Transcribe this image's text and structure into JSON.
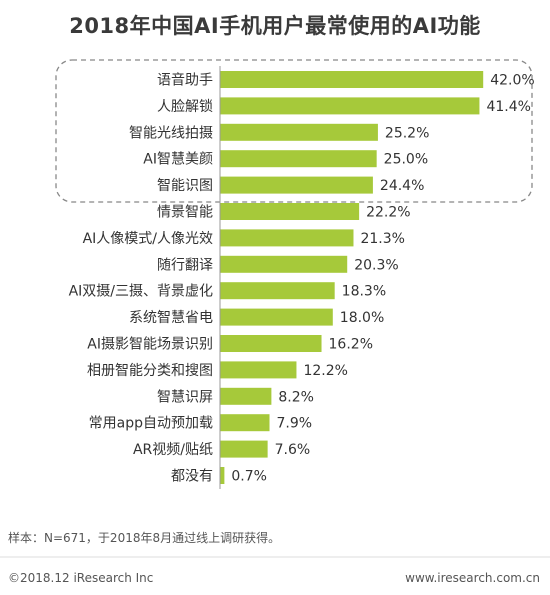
{
  "title": "2018年中国AI手机用户最常使用的AI功能",
  "note": "样本：N=671，于2018年8月通过线上调研获得。",
  "footer": {
    "copyright": "©2018.12 iResearch Inc",
    "website": "www.iresearch.com.cn"
  },
  "colors": {
    "bar": "#a6c93a",
    "highlight_border": "#888888",
    "axis": "#999999"
  },
  "chart_data": {
    "type": "bar",
    "orientation": "horizontal",
    "title": "2018年中国AI手机用户最常使用的AI功能",
    "categories": [
      "语音助手",
      "人脸解锁",
      "智能光线拍摄",
      "AI智慧美颜",
      "智能识图",
      "情景智能",
      "AI人像模式/人像光效",
      "随行翻译",
      "AI双摄/三摄、背景虚化",
      "系统智慧省电",
      "AI摄影智能场景识别",
      "相册智能分类和搜图",
      "智慧识屏",
      "常用app自动预加载",
      "AR视频/贴纸",
      "都没有"
    ],
    "values": [
      42.0,
      41.4,
      25.2,
      25.0,
      24.4,
      22.2,
      21.3,
      20.3,
      18.3,
      18.0,
      16.2,
      12.2,
      8.2,
      7.9,
      7.6,
      0.7
    ],
    "value_labels": [
      "42.0%",
      "41.4%",
      "25.2%",
      "25.0%",
      "24.4%",
      "22.2%",
      "21.3%",
      "20.3%",
      "18.3%",
      "18.0%",
      "16.2%",
      "12.2%",
      "8.2%",
      "7.9%",
      "7.6%",
      "0.7%"
    ],
    "highlighted_categories": [
      "语音助手",
      "人脸解锁",
      "智能光线拍摄",
      "AI智慧美颜",
      "智能识图"
    ],
    "xlim": [
      0,
      45
    ],
    "grid": false,
    "legend": "none"
  }
}
